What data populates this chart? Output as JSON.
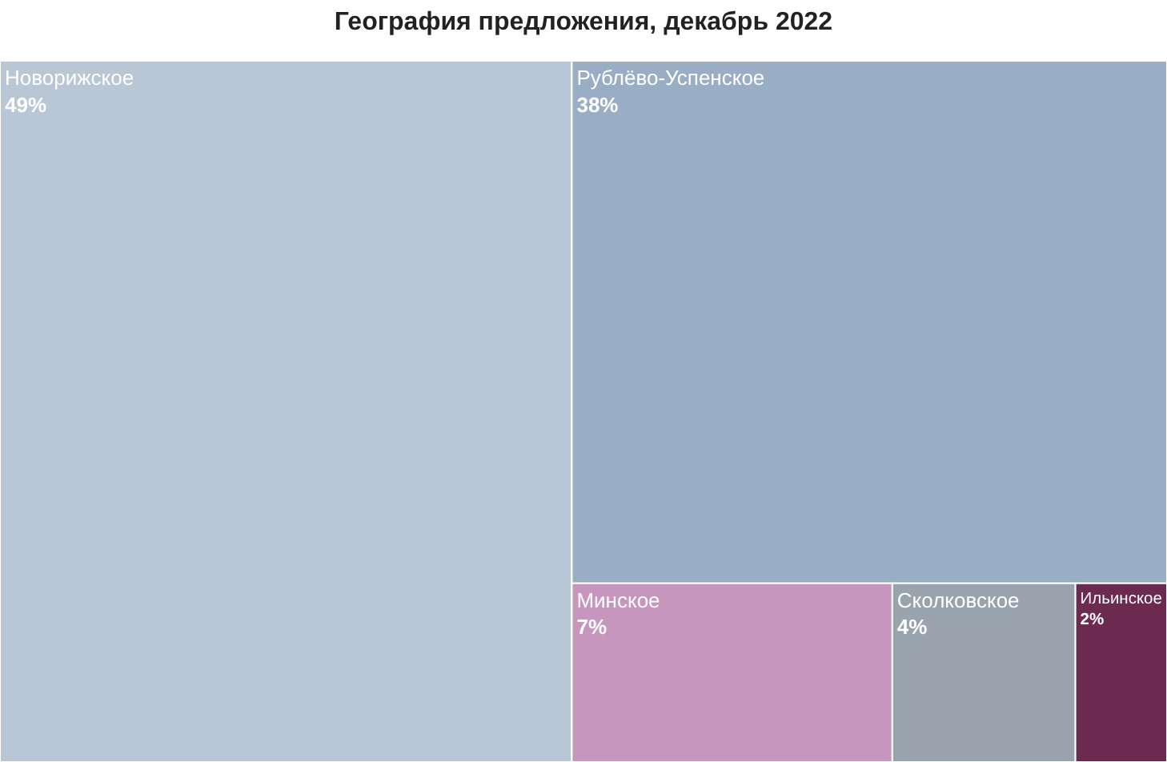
{
  "chart_data": {
    "type": "other",
    "title": "География предложения, декабрь 2022",
    "categories": [
      "Новорижское",
      "Рублёво-Успенское",
      "Минское",
      "Сколковское",
      "Ильинское"
    ],
    "values": [
      49,
      38,
      7,
      4,
      2
    ],
    "value_labels": [
      "49%",
      "38%",
      "7%",
      "4%",
      "2%"
    ],
    "colors": [
      "#b9c6d6",
      "#99aec4",
      "#c696bf",
      "#99a3ad",
      "#6b2a50"
    ]
  }
}
